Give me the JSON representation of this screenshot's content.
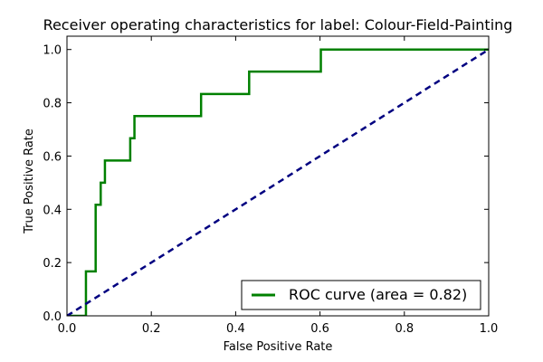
{
  "chart_data": {
    "type": "line",
    "title": "Receiver operating characteristics for label: Colour-Field-Painting",
    "xlabel": "False Positive Rate",
    "ylabel": "True Positive Rate",
    "xlim": [
      0.0,
      1.0
    ],
    "ylim": [
      0.0,
      1.05
    ],
    "x_ticks": [
      "0.0",
      "0.2",
      "0.4",
      "0.6",
      "0.8",
      "1.0"
    ],
    "y_ticks": [
      "0.0",
      "0.2",
      "0.4",
      "0.6",
      "0.8",
      "1.0"
    ],
    "grid": false,
    "legend_position": "lower-right",
    "series": [
      {
        "name": "ROC curve (area = 0.82)",
        "color": "#008000",
        "line_style": "solid",
        "points": [
          [
            0.0,
            0.0
          ],
          [
            0.045,
            0.0
          ],
          [
            0.045,
            0.04
          ],
          [
            0.045,
            0.167
          ],
          [
            0.068,
            0.167
          ],
          [
            0.068,
            0.417
          ],
          [
            0.08,
            0.417
          ],
          [
            0.08,
            0.5
          ],
          [
            0.09,
            0.5
          ],
          [
            0.09,
            0.583
          ],
          [
            0.15,
            0.583
          ],
          [
            0.15,
            0.667
          ],
          [
            0.16,
            0.667
          ],
          [
            0.16,
            0.75
          ],
          [
            0.318,
            0.75
          ],
          [
            0.318,
            0.833
          ],
          [
            0.432,
            0.833
          ],
          [
            0.432,
            0.917
          ],
          [
            0.602,
            0.917
          ],
          [
            0.602,
            1.0
          ],
          [
            1.0,
            1.0
          ]
        ]
      },
      {
        "color": "#000080",
        "line_style": "dashed",
        "points": [
          [
            0.0,
            0.0
          ],
          [
            1.0,
            1.0
          ]
        ]
      }
    ]
  }
}
